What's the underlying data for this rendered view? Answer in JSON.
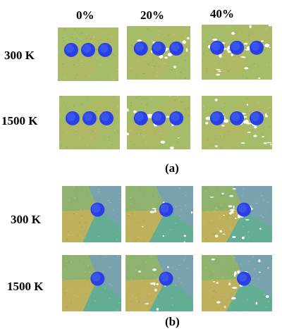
{
  "columns": [
    "0%",
    "20%",
    "40%"
  ],
  "part_a": {
    "rows": [
      "300 K",
      "1500 K"
    ],
    "caption": "(a)"
  },
  "part_b": {
    "rows": [
      "300 K",
      "1500 K"
    ],
    "caption": "(b)"
  },
  "colors": {
    "matrix_green": "#a9bf6a",
    "matrix_olive": "#c2b25e",
    "grain_teal": "#5fb09b",
    "grain_blue": "#6f9fc0",
    "particle_blue": "#2a3fe6",
    "void_white": "#ffffff"
  },
  "panels": {
    "a": [
      [
        "0.0",
        "0.2",
        "0.4"
      ],
      [
        "0.0",
        "0.2",
        "0.4"
      ]
    ],
    "b": [
      [
        "0.0",
        "0.2",
        "0.4"
      ],
      [
        "0.0",
        "0.2",
        "0.4"
      ]
    ]
  }
}
